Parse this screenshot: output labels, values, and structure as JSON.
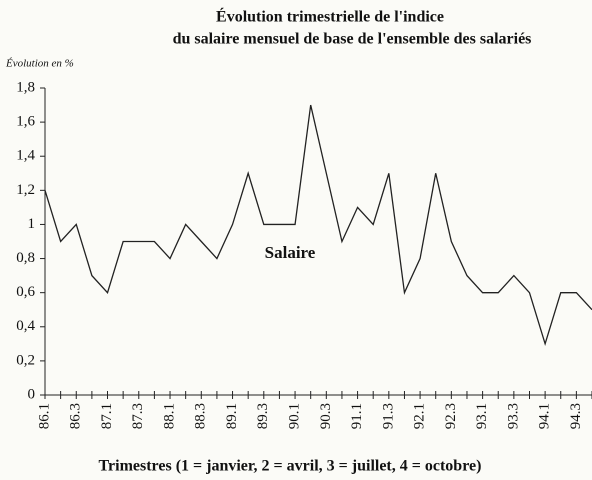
{
  "chart_data": {
    "type": "line",
    "title": [
      "Évolution trimestrielle de l'indice",
      "du salaire mensuel de base de l'ensemble des salariés"
    ],
    "y_label": "Évolution en %",
    "x_label": "Trimestres  (1 = janvier, 2 = avril, 3 = juillet, 4 = octobre)",
    "annotation": "Salaire",
    "categories": [
      "86.1",
      null,
      "86.3",
      null,
      "87.1",
      null,
      "87.3",
      null,
      "88.1",
      null,
      "88.3",
      null,
      "89.1",
      null,
      "89.3",
      null,
      "90.1",
      null,
      "90.3",
      null,
      "91.1",
      null,
      "91.3",
      null,
      "92.1",
      null,
      "92.3",
      null,
      "93.1",
      null,
      "93.3",
      null,
      "94.1",
      null,
      "94.3",
      null
    ],
    "series": [
      {
        "name": "Salaire",
        "color": "#222222",
        "values": [
          1.2,
          0.9,
          1.0,
          0.7,
          0.6,
          0.9,
          0.9,
          0.9,
          0.8,
          1.0,
          0.9,
          0.8,
          1.0,
          1.3,
          1.0,
          1.0,
          1.0,
          1.7,
          1.3,
          0.9,
          1.1,
          1.0,
          1.3,
          0.6,
          0.8,
          1.3,
          0.9,
          0.7,
          0.6,
          0.6,
          0.7,
          0.6,
          0.3,
          0.6,
          0.6,
          0.5
        ]
      }
    ],
    "ylim": [
      0,
      1.8
    ],
    "yticks": [
      0,
      {
        "value": 0.2,
        "label": "0,2"
      },
      {
        "value": 0.4,
        "label": "0,4"
      },
      {
        "value": 0.6,
        "label": "0,6"
      },
      {
        "value": 0.8,
        "label": "0,8"
      },
      1,
      {
        "value": 1.2,
        "label": "1,2"
      },
      {
        "value": 1.4,
        "label": "1,4"
      },
      {
        "value": 1.6,
        "label": "1,6"
      },
      {
        "value": 1.8,
        "label": "1,8"
      }
    ],
    "grid": false
  }
}
